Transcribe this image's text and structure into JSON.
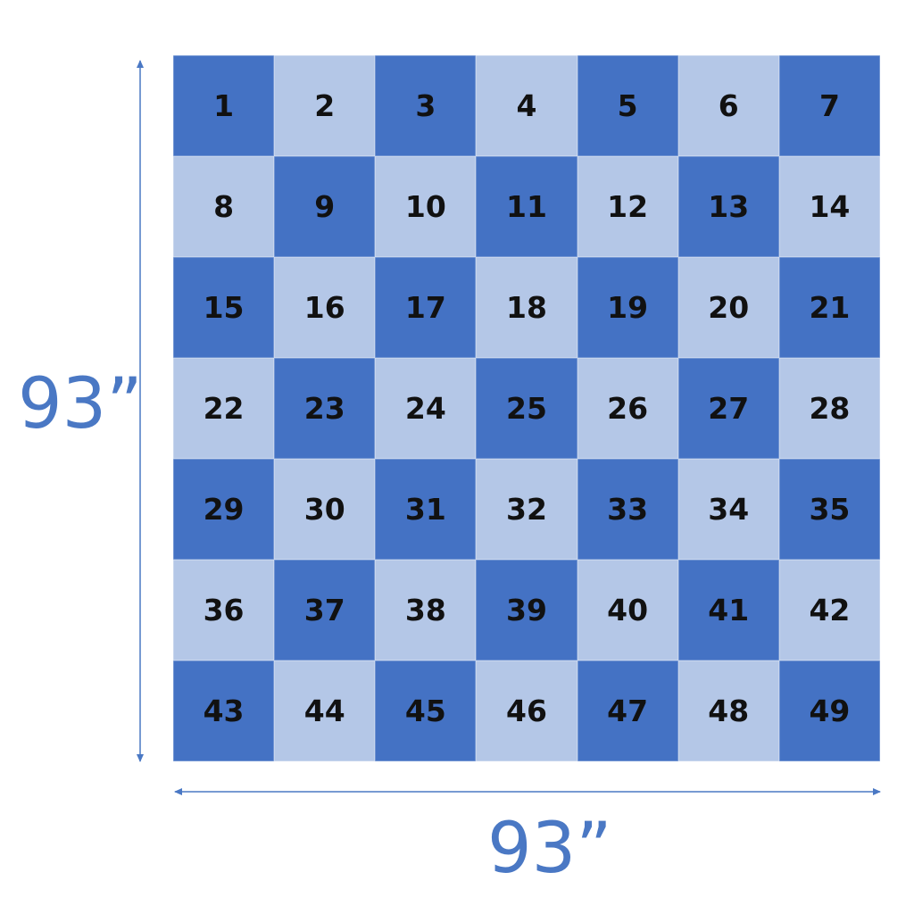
{
  "grid": {
    "rows": 7,
    "cols": 7,
    "cells": [
      1,
      2,
      3,
      4,
      5,
      6,
      7,
      8,
      9,
      10,
      11,
      12,
      13,
      14,
      15,
      16,
      17,
      18,
      19,
      20,
      21,
      22,
      23,
      24,
      25,
      26,
      27,
      28,
      29,
      30,
      31,
      32,
      33,
      34,
      35,
      36,
      37,
      38,
      39,
      40,
      41,
      42,
      43,
      44,
      45,
      46,
      47,
      48,
      49
    ],
    "dark_color": "#4472C4",
    "light_color": "#B4C7E7"
  },
  "dimensions": {
    "height_label": "93”",
    "width_label": "93”",
    "arrow_color": "#4a78c4"
  }
}
